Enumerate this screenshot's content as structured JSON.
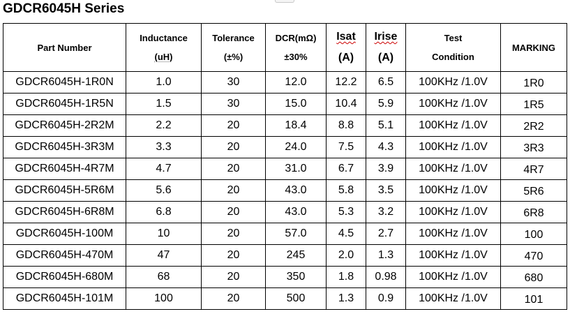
{
  "title": "GDCR6045H Series",
  "headers": {
    "part_number": "Part Number",
    "inductance": "Inductance",
    "inductance_unit": "(uH)",
    "tolerance": "Tolerance",
    "tolerance_unit": "(±%)",
    "dcr": "DCR(mΩ)",
    "dcr_unit": "±30%",
    "isat": "Isat",
    "isat_unit": "(A)",
    "irise": "Irise",
    "irise_unit": "(A)",
    "test": "Test",
    "condition": "Condition",
    "marking": "MARKING"
  },
  "rows": [
    {
      "part": "GDCR6045H-1R0N",
      "inductance": "1.0",
      "tolerance": "30",
      "dcr": "12.0",
      "isat": "12.2",
      "irise": "6.5",
      "test": "100KHz /1.0V",
      "marking": "1R0"
    },
    {
      "part": "GDCR6045H-1R5N",
      "inductance": "1.5",
      "tolerance": "30",
      "dcr": "15.0",
      "isat": "10.4",
      "irise": "5.9",
      "test": "100KHz /1.0V",
      "marking": "1R5"
    },
    {
      "part": "GDCR6045H-2R2M",
      "inductance": "2.2",
      "tolerance": "20",
      "dcr": "18.4",
      "isat": "8.8",
      "irise": "5.1",
      "test": "100KHz /1.0V",
      "marking": "2R2"
    },
    {
      "part": "GDCR6045H-3R3M",
      "inductance": "3.3",
      "tolerance": "20",
      "dcr": "24.0",
      "isat": "7.5",
      "irise": "4.3",
      "test": "100KHz /1.0V",
      "marking": "3R3"
    },
    {
      "part": "GDCR6045H-4R7M",
      "inductance": "4.7",
      "tolerance": "20",
      "dcr": "31.0",
      "isat": "6.7",
      "irise": "3.9",
      "test": "100KHz /1.0V",
      "marking": "4R7"
    },
    {
      "part": "GDCR6045H-5R6M",
      "inductance": "5.6",
      "tolerance": "20",
      "dcr": "43.0",
      "isat": "5.8",
      "irise": "3.5",
      "test": "100KHz /1.0V",
      "marking": "5R6"
    },
    {
      "part": "GDCR6045H-6R8M",
      "inductance": "6.8",
      "tolerance": "20",
      "dcr": "43.0",
      "isat": "5.3",
      "irise": "3.2",
      "test": "100KHz /1.0V",
      "marking": "6R8"
    },
    {
      "part": "GDCR6045H-100M",
      "inductance": "10",
      "tolerance": "20",
      "dcr": "57.0",
      "isat": "4.5",
      "irise": "2.7",
      "test": "100KHz /1.0V",
      "marking": "100"
    },
    {
      "part": "GDCR6045H-470M",
      "inductance": "47",
      "tolerance": "20",
      "dcr": "245",
      "isat": "2.0",
      "irise": "1.3",
      "test": "100KHz /1.0V",
      "marking": "470"
    },
    {
      "part": "GDCR6045H-680M",
      "inductance": "68",
      "tolerance": "20",
      "dcr": "350",
      "isat": "1.8",
      "irise": "0.98",
      "test": "100KHz /1.0V",
      "marking": "680"
    },
    {
      "part": "GDCR6045H-101M",
      "inductance": "100",
      "tolerance": "20",
      "dcr": "500",
      "isat": "1.3",
      "irise": "0.9",
      "test": "100KHz /1.0V",
      "marking": "101"
    }
  ]
}
